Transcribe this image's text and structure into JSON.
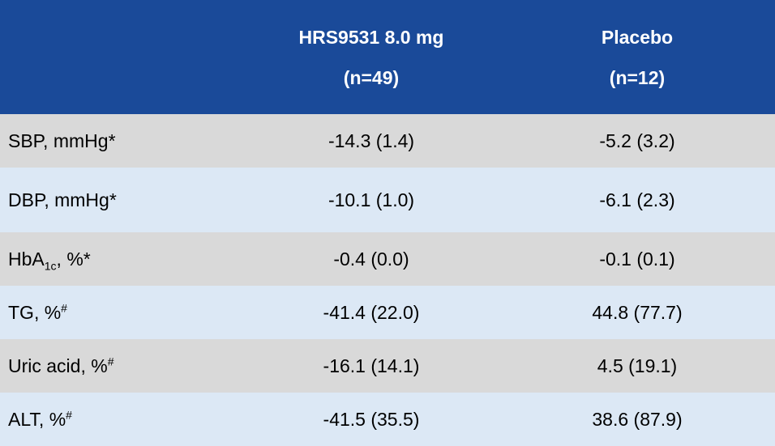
{
  "header": {
    "col1_line1": "HRS9531 8.0 mg",
    "col1_line2": "(n=49)",
    "col2_line1": "Placebo",
    "col2_line2": "(n=12)"
  },
  "colors": {
    "header_bg": "#1a4a99",
    "row_gray": "#d9d9d9",
    "row_blue": "#dce8f5"
  },
  "rows": [
    {
      "label": "SBP, mmHg",
      "mark": "*",
      "v1": "-14.3 (1.4)",
      "v2": "-5.2 (3.2)"
    },
    {
      "label": "DBP, mmHg",
      "mark": "*",
      "v1": "-10.1 (1.0)",
      "v2": "-6.1 (2.3)"
    },
    {
      "label": "HbA",
      "sub": "1c",
      "label_tail": ", %",
      "mark": "*",
      "v1": "-0.4 (0.0)",
      "v2": "-0.1 (0.1)"
    },
    {
      "label": "TG, %",
      "mark": "#",
      "v1": "-41.4 (22.0)",
      "v2": "44.8 (77.7)"
    },
    {
      "label": "Uric acid, %",
      "mark": "#",
      "v1": "-16.1 (14.1)",
      "v2": "4.5 (19.1)"
    },
    {
      "label": "ALT, %",
      "mark": "#",
      "v1": "-41.5 (35.5)",
      "v2": "38.6 (87.9)"
    }
  ]
}
